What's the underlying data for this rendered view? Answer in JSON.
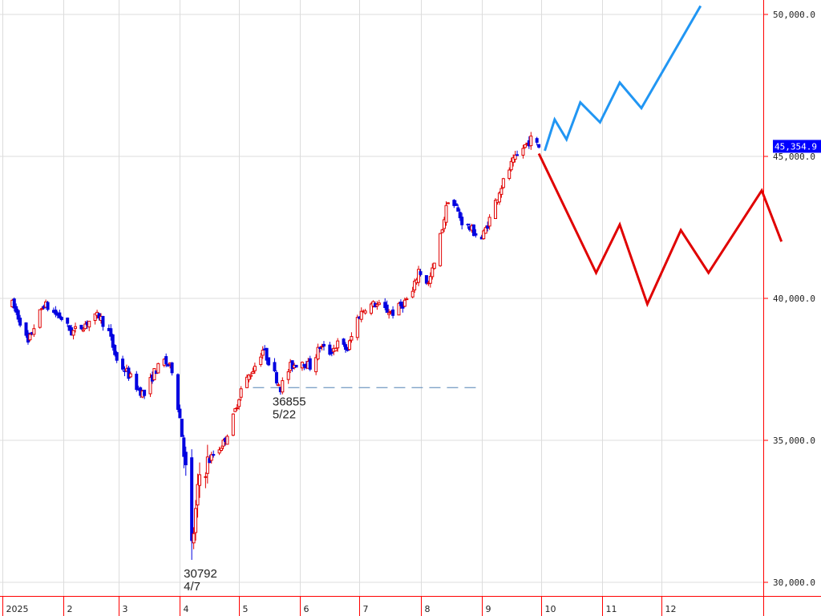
{
  "chart_data": {
    "type": "candlestick",
    "ylim": [
      29500,
      50400
    ],
    "y_ticks": [
      {
        "value": 30000,
        "label": "30,000.0"
      },
      {
        "value": 35000,
        "label": "35,000.0"
      },
      {
        "value": 40000,
        "label": "40,000.0"
      },
      {
        "value": 45000,
        "label": "45,000.0"
      },
      {
        "value": 50000,
        "label": "50,000.0"
      }
    ],
    "x_ticks": [
      {
        "label": "2025",
        "month": 1
      },
      {
        "label": "2",
        "month": 2
      },
      {
        "label": "3",
        "month": 3
      },
      {
        "label": "4",
        "month": 4
      },
      {
        "label": "5",
        "month": 5
      },
      {
        "label": "6",
        "month": 6
      },
      {
        "label": "7",
        "month": 7
      },
      {
        "label": "8",
        "month": 8
      },
      {
        "label": "9",
        "month": 9
      },
      {
        "label": "10",
        "month": 10
      },
      {
        "label": "11",
        "month": 11
      },
      {
        "label": "12",
        "month": 12
      }
    ],
    "current_price": {
      "value": 45354.9,
      "label": "45,354.9"
    },
    "price_path": [
      [
        "2025-01-06",
        39800
      ],
      [
        "2025-01-10",
        39200
      ],
      [
        "2025-01-14",
        38400
      ],
      [
        "2025-01-17",
        39000
      ],
      [
        "2025-01-22",
        39800
      ],
      [
        "2025-01-27",
        39500
      ],
      [
        "2025-01-31",
        39300
      ],
      [
        "2025-02-05",
        38800
      ],
      [
        "2025-02-10",
        39000
      ],
      [
        "2025-02-14",
        39200
      ],
      [
        "2025-02-19",
        39400
      ],
      [
        "2025-02-24",
        38800
      ],
      [
        "2025-02-28",
        37800
      ],
      [
        "2025-03-05",
        37400
      ],
      [
        "2025-03-11",
        36800
      ],
      [
        "2025-03-14",
        36600
      ],
      [
        "2025-03-19",
        37400
      ],
      [
        "2025-03-24",
        37800
      ],
      [
        "2025-03-28",
        37500
      ],
      [
        "2025-04-01",
        35800
      ],
      [
        "2025-04-03",
        34800
      ],
      [
        "2025-04-07",
        31200
      ],
      [
        "2025-04-09",
        32400
      ],
      [
        "2025-04-11",
        33800
      ],
      [
        "2025-04-15",
        34200
      ],
      [
        "2025-04-18",
        34500
      ],
      [
        "2025-04-23",
        34900
      ],
      [
        "2025-04-28",
        35800
      ],
      [
        "2025-05-02",
        36800
      ],
      [
        "2025-05-08",
        37500
      ],
      [
        "2025-05-13",
        38200
      ],
      [
        "2025-05-16",
        37800
      ],
      [
        "2025-05-22",
        36855
      ],
      [
        "2025-05-27",
        37600
      ],
      [
        "2025-06-02",
        37800
      ],
      [
        "2025-06-06",
        37600
      ],
      [
        "2025-06-11",
        38300
      ],
      [
        "2025-06-16",
        38100
      ],
      [
        "2025-06-20",
        38400
      ],
      [
        "2025-06-25",
        38200
      ],
      [
        "2025-06-30",
        39300
      ],
      [
        "2025-07-04",
        39700
      ],
      [
        "2025-07-09",
        39800
      ],
      [
        "2025-07-14",
        39600
      ],
      [
        "2025-07-18",
        39500
      ],
      [
        "2025-07-23",
        39800
      ],
      [
        "2025-07-28",
        40200
      ],
      [
        "2025-07-31",
        41000
      ],
      [
        "2025-08-05",
        40500
      ],
      [
        "2025-08-08",
        41200
      ],
      [
        "2025-08-12",
        42500
      ],
      [
        "2025-08-15",
        43500
      ],
      [
        "2025-08-19",
        43200
      ],
      [
        "2025-08-22",
        42700
      ],
      [
        "2025-08-27",
        42400
      ],
      [
        "2025-09-01",
        42100
      ],
      [
        "2025-09-05",
        42800
      ],
      [
        "2025-09-10",
        43800
      ],
      [
        "2025-09-16",
        44700
      ],
      [
        "2025-09-22",
        45300
      ],
      [
        "2025-09-26",
        45600
      ],
      [
        "2025-09-30",
        45354
      ]
    ],
    "series": [
      {
        "color": "#2196f3",
        "points": [
          [
            "2025-10-03",
            45200
          ],
          [
            "2025-10-08",
            46300
          ],
          [
            "2025-10-14",
            45600
          ],
          [
            "2025-10-21",
            46900
          ],
          [
            "2025-10-31",
            46200
          ],
          [
            "2025-11-10",
            47600
          ],
          [
            "2025-11-21",
            46700
          ],
          [
            "2025-12-21",
            50300
          ]
        ]
      },
      {
        "color": "#e00000",
        "points": [
          [
            "2025-09-30",
            45100
          ],
          [
            "2025-10-29",
            40900
          ],
          [
            "2025-11-10",
            42600
          ],
          [
            "2025-11-24",
            39800
          ],
          [
            "2025-12-11",
            42400
          ],
          [
            "2025-12-25",
            40900
          ],
          [
            "2026-01-21",
            43800
          ],
          [
            "2026-01-31",
            42000
          ]
        ]
      }
    ],
    "annotations": [
      {
        "value": "30792",
        "date_label": "4/7",
        "date": "2025-04-07",
        "price": 30792
      },
      {
        "value": "36855",
        "date_label": "5/22",
        "date": "2025-05-22",
        "price": 36855
      }
    ],
    "support_line": {
      "value": 36855,
      "from": "2025-05-08",
      "to": "2025-09-01"
    }
  },
  "colors": {
    "up": "#e00000",
    "down": "#0000e0",
    "grid": "#dcdcdc",
    "axis": "#ff0000",
    "support": "#7fa3c7",
    "price_tag": "#0000ff"
  }
}
